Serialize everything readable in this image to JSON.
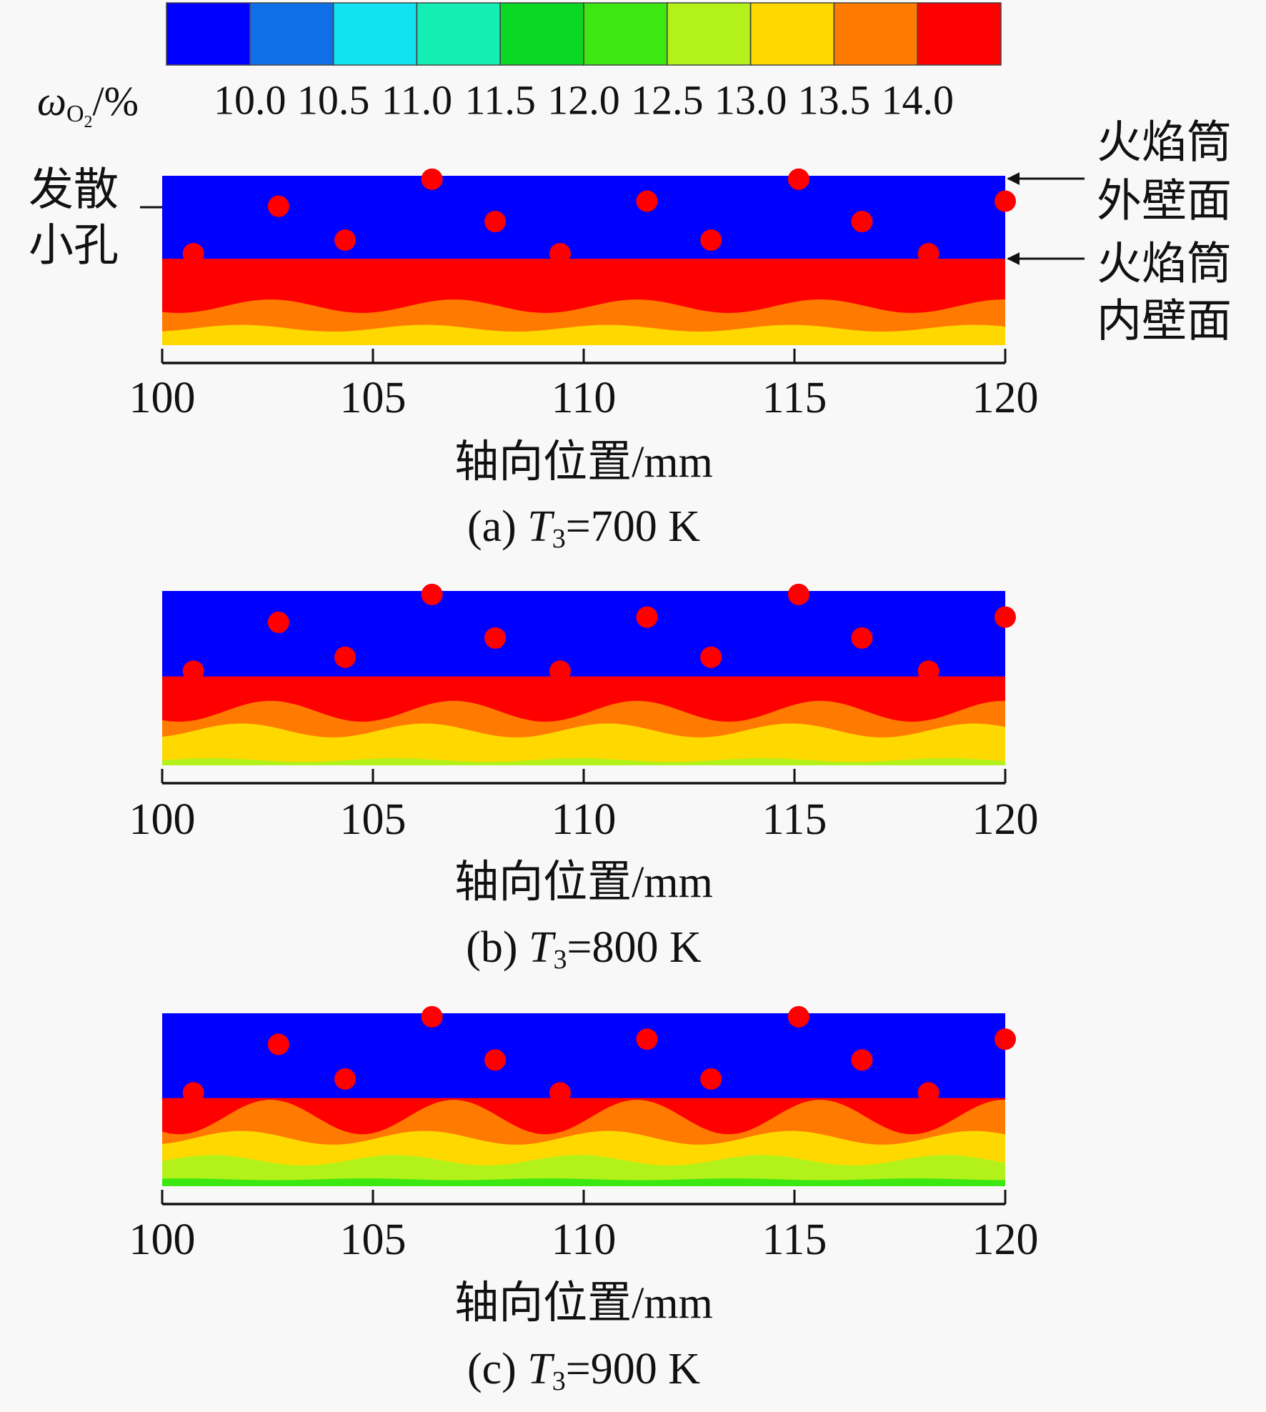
{
  "colorbar": {
    "label": {
      "symbol": "ω",
      "sub": "O",
      "subsub": "2",
      "unit": "/%"
    },
    "lim": [
      9.5,
      14.5
    ],
    "colors": [
      "#0000ff",
      "#0f6fe8",
      "#12e2f2",
      "#14eeb2",
      "#0ad822",
      "#3de812",
      "#b2f21a",
      "#ffd800",
      "#ff7a00",
      "#ff0000"
    ],
    "ticks": [
      {
        "value": 10,
        "label": "10.0"
      },
      {
        "value": 10.5,
        "label": "10.5"
      },
      {
        "value": 11,
        "label": "11.0"
      },
      {
        "value": 11.5,
        "label": "11.5"
      },
      {
        "value": 12,
        "label": "12.0"
      },
      {
        "value": 12.5,
        "label": "12.5"
      },
      {
        "value": 13,
        "label": "13.0"
      },
      {
        "value": 13.5,
        "label": "13.5"
      },
      {
        "value": 14,
        "label": "14.0"
      }
    ]
  },
  "annotations": {
    "hole": [
      "发散",
      "小孔"
    ],
    "outer_wall": [
      "火焰筒",
      "外壁面"
    ],
    "inner_wall": [
      "火焰筒",
      "内壁面"
    ]
  },
  "chart_data": [
    {
      "type": "contour",
      "xlabel": "轴向位置/mm",
      "caption": {
        "prefix": "(a) ",
        "var": "T",
        "sub": "3",
        "suffix": "=700 K"
      },
      "xlim": [
        100,
        120
      ],
      "xticks": [
        100,
        105,
        110,
        115,
        120
      ]
    },
    {
      "type": "contour",
      "xlabel": "轴向位置/mm",
      "caption": {
        "prefix": "(b) ",
        "var": "T",
        "sub": "3",
        "suffix": "=800 K"
      },
      "xlim": [
        100,
        120
      ],
      "xticks": [
        100,
        105,
        110,
        115,
        120
      ]
    },
    {
      "type": "contour",
      "xlabel": "轴向位置/mm",
      "caption": {
        "prefix": "(c) ",
        "var": "T",
        "sub": "3",
        "suffix": "=900 K"
      },
      "xlim": [
        100,
        120
      ],
      "xticks": [
        100,
        105,
        110,
        115,
        120
      ]
    }
  ]
}
